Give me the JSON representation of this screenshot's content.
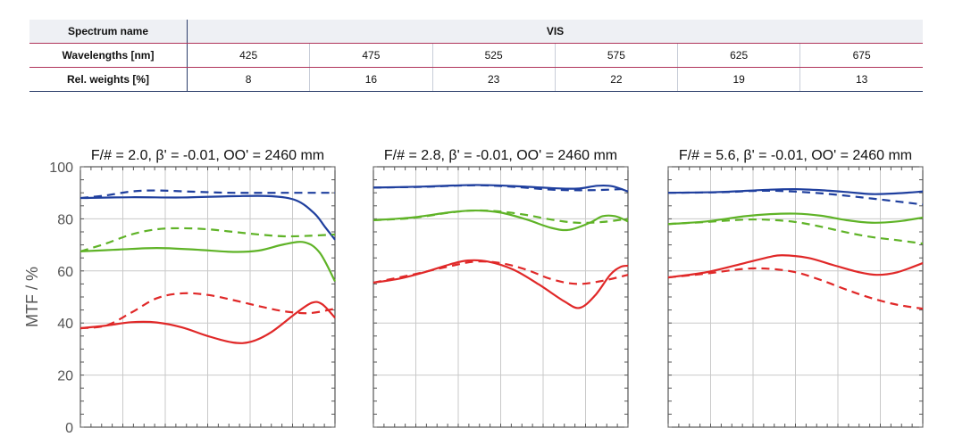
{
  "table": {
    "row_labels": [
      "Spectrum name",
      "Wavelengths [nm]",
      "Rel. weights [%]"
    ],
    "spectrum_name": "VIS",
    "wavelengths": [
      "425",
      "475",
      "525",
      "575",
      "625",
      "675"
    ],
    "weights": [
      "8",
      "16",
      "23",
      "22",
      "19",
      "13"
    ]
  },
  "chart_data": {
    "type": "line",
    "ylabel": "MTF / %",
    "ylim": [
      0,
      100
    ],
    "yticks": [
      "0",
      "20",
      "40",
      "60",
      "80",
      "100"
    ],
    "x_gridlines": 5,
    "y_gridlines": 5,
    "grid": true,
    "colors": {
      "blue": "#1f3f9e",
      "green": "#5fb327",
      "red": "#e02828"
    },
    "panels": [
      {
        "title": "F/# = 2.0, β' = -0.01, OO' = 2460 mm",
        "xlim": [
          0,
          1
        ],
        "series": [
          {
            "color": "blue",
            "style": "solid",
            "points": [
              [
                0,
                88
              ],
              [
                0.2,
                88.3
              ],
              [
                0.4,
                88.2
              ],
              [
                0.6,
                88.7
              ],
              [
                0.75,
                88.7
              ],
              [
                0.85,
                87
              ],
              [
                0.92,
                82
              ],
              [
                0.96,
                77
              ],
              [
                1,
                72
              ]
            ]
          },
          {
            "color": "blue",
            "style": "dashed",
            "points": [
              [
                0,
                88
              ],
              [
                0.1,
                89
              ],
              [
                0.2,
                90.5
              ],
              [
                0.3,
                90.9
              ],
              [
                0.45,
                90.4
              ],
              [
                0.6,
                90
              ],
              [
                0.8,
                90
              ],
              [
                1,
                90
              ]
            ]
          },
          {
            "color": "green",
            "style": "solid",
            "points": [
              [
                0,
                67.5
              ],
              [
                0.15,
                68.2
              ],
              [
                0.3,
                68.8
              ],
              [
                0.45,
                68.2
              ],
              [
                0.6,
                67.3
              ],
              [
                0.7,
                67.8
              ],
              [
                0.8,
                70.2
              ],
              [
                0.88,
                71
              ],
              [
                0.94,
                67
              ],
              [
                1,
                56
              ]
            ]
          },
          {
            "color": "green",
            "style": "dashed",
            "points": [
              [
                0,
                67.5
              ],
              [
                0.1,
                70.5
              ],
              [
                0.2,
                74
              ],
              [
                0.3,
                76
              ],
              [
                0.4,
                76.4
              ],
              [
                0.5,
                76
              ],
              [
                0.6,
                75
              ],
              [
                0.7,
                74
              ],
              [
                0.8,
                73.3
              ],
              [
                0.9,
                73.5
              ],
              [
                1,
                74
              ]
            ]
          },
          {
            "color": "red",
            "style": "solid",
            "points": [
              [
                0,
                38
              ],
              [
                0.1,
                39
              ],
              [
                0.2,
                40.3
              ],
              [
                0.3,
                40.2
              ],
              [
                0.4,
                38.3
              ],
              [
                0.5,
                35
              ],
              [
                0.6,
                32.5
              ],
              [
                0.67,
                32.8
              ],
              [
                0.75,
                36.5
              ],
              [
                0.85,
                44
              ],
              [
                0.91,
                47.8
              ],
              [
                0.95,
                47.2
              ],
              [
                1,
                42
              ]
            ]
          },
          {
            "color": "red",
            "style": "dashed",
            "points": [
              [
                0,
                38
              ],
              [
                0.1,
                39
              ],
              [
                0.2,
                44
              ],
              [
                0.3,
                49.5
              ],
              [
                0.4,
                51.4
              ],
              [
                0.5,
                50.8
              ],
              [
                0.6,
                48.8
              ],
              [
                0.7,
                46.5
              ],
              [
                0.8,
                44.5
              ],
              [
                0.9,
                43.8
              ],
              [
                1,
                45.5
              ]
            ]
          }
        ]
      },
      {
        "title": "F/# = 2.8, β' = -0.01, OO' = 2460 mm",
        "xlim": [
          0,
          1
        ],
        "series": [
          {
            "color": "blue",
            "style": "solid",
            "points": [
              [
                0,
                92
              ],
              [
                0.2,
                92.4
              ],
              [
                0.4,
                93
              ],
              [
                0.55,
                92.6
              ],
              [
                0.7,
                91.8
              ],
              [
                0.8,
                91.6
              ],
              [
                0.88,
                92.7
              ],
              [
                0.94,
                92.5
              ],
              [
                1,
                90.5
              ]
            ]
          },
          {
            "color": "blue",
            "style": "dashed",
            "points": [
              [
                0,
                92
              ],
              [
                0.2,
                92.3
              ],
              [
                0.4,
                92.9
              ],
              [
                0.55,
                92.3
              ],
              [
                0.7,
                91.2
              ],
              [
                0.85,
                91
              ],
              [
                1,
                91.5
              ]
            ]
          },
          {
            "color": "green",
            "style": "solid",
            "points": [
              [
                0,
                79.5
              ],
              [
                0.15,
                80.5
              ],
              [
                0.3,
                82.5
              ],
              [
                0.4,
                83.2
              ],
              [
                0.5,
                82.4
              ],
              [
                0.6,
                79.8
              ],
              [
                0.7,
                76.5
              ],
              [
                0.77,
                75.8
              ],
              [
                0.85,
                78.5
              ],
              [
                0.9,
                81
              ],
              [
                0.95,
                81
              ],
              [
                1,
                79
              ]
            ]
          },
          {
            "color": "green",
            "style": "dashed",
            "points": [
              [
                0,
                79.5
              ],
              [
                0.15,
                80.3
              ],
              [
                0.3,
                82.4
              ],
              [
                0.4,
                83.2
              ],
              [
                0.5,
                82.8
              ],
              [
                0.6,
                81.5
              ],
              [
                0.7,
                79.7
              ],
              [
                0.8,
                78.5
              ],
              [
                0.9,
                78.8
              ],
              [
                1,
                80
              ]
            ]
          },
          {
            "color": "red",
            "style": "solid",
            "points": [
              [
                0,
                55.5
              ],
              [
                0.1,
                57
              ],
              [
                0.2,
                59.5
              ],
              [
                0.3,
                62.5
              ],
              [
                0.37,
                64
              ],
              [
                0.45,
                63.6
              ],
              [
                0.55,
                60.5
              ],
              [
                0.65,
                54.8
              ],
              [
                0.75,
                48.3
              ],
              [
                0.81,
                45.8
              ],
              [
                0.87,
                50.5
              ],
              [
                0.93,
                58.5
              ],
              [
                0.97,
                61.5
              ],
              [
                1,
                62
              ]
            ]
          },
          {
            "color": "red",
            "style": "dashed",
            "points": [
              [
                0,
                55.5
              ],
              [
                0.15,
                58.5
              ],
              [
                0.3,
                61.8
              ],
              [
                0.4,
                63.6
              ],
              [
                0.5,
                63
              ],
              [
                0.6,
                60.5
              ],
              [
                0.7,
                56.8
              ],
              [
                0.8,
                55
              ],
              [
                0.9,
                56.2
              ],
              [
                1,
                58.5
              ]
            ]
          }
        ]
      },
      {
        "title": "F/# = 5.6, β' = -0.01, OO' = 2460 mm",
        "xlim": [
          0,
          1
        ],
        "series": [
          {
            "color": "blue",
            "style": "solid",
            "points": [
              [
                0,
                90
              ],
              [
                0.2,
                90.3
              ],
              [
                0.4,
                91.2
              ],
              [
                0.5,
                91.4
              ],
              [
                0.6,
                91
              ],
              [
                0.7,
                90.3
              ],
              [
                0.8,
                89.5
              ],
              [
                0.9,
                89.8
              ],
              [
                1,
                90.5
              ]
            ]
          },
          {
            "color": "blue",
            "style": "dashed",
            "points": [
              [
                0,
                90
              ],
              [
                0.2,
                90.2
              ],
              [
                0.4,
                90.8
              ],
              [
                0.6,
                89.8
              ],
              [
                0.8,
                87.8
              ],
              [
                1,
                85.5
              ]
            ]
          },
          {
            "color": "green",
            "style": "solid",
            "points": [
              [
                0,
                78
              ],
              [
                0.15,
                79
              ],
              [
                0.3,
                81
              ],
              [
                0.4,
                81.8
              ],
              [
                0.5,
                82
              ],
              [
                0.6,
                81.2
              ],
              [
                0.7,
                79.5
              ],
              [
                0.8,
                78.5
              ],
              [
                0.9,
                79
              ],
              [
                1,
                80.5
              ]
            ]
          },
          {
            "color": "green",
            "style": "dashed",
            "points": [
              [
                0,
                78
              ],
              [
                0.15,
                78.8
              ],
              [
                0.3,
                79.7
              ],
              [
                0.4,
                79.6
              ],
              [
                0.5,
                78.8
              ],
              [
                0.6,
                77
              ],
              [
                0.7,
                74.8
              ],
              [
                0.8,
                73
              ],
              [
                0.9,
                71.8
              ],
              [
                1,
                70.5
              ]
            ]
          },
          {
            "color": "red",
            "style": "solid",
            "points": [
              [
                0,
                57.5
              ],
              [
                0.15,
                59.5
              ],
              [
                0.3,
                63
              ],
              [
                0.4,
                65.4
              ],
              [
                0.45,
                66
              ],
              [
                0.55,
                65
              ],
              [
                0.65,
                62.2
              ],
              [
                0.75,
                59.5
              ],
              [
                0.82,
                58.5
              ],
              [
                0.9,
                59.5
              ],
              [
                1,
                63
              ]
            ]
          },
          {
            "color": "red",
            "style": "dashed",
            "points": [
              [
                0,
                57.5
              ],
              [
                0.15,
                59
              ],
              [
                0.3,
                60.8
              ],
              [
                0.4,
                60.8
              ],
              [
                0.5,
                59.5
              ],
              [
                0.6,
                56.5
              ],
              [
                0.7,
                52.8
              ],
              [
                0.8,
                49.5
              ],
              [
                0.9,
                47
              ],
              [
                1,
                45.5
              ]
            ]
          }
        ]
      }
    ]
  }
}
